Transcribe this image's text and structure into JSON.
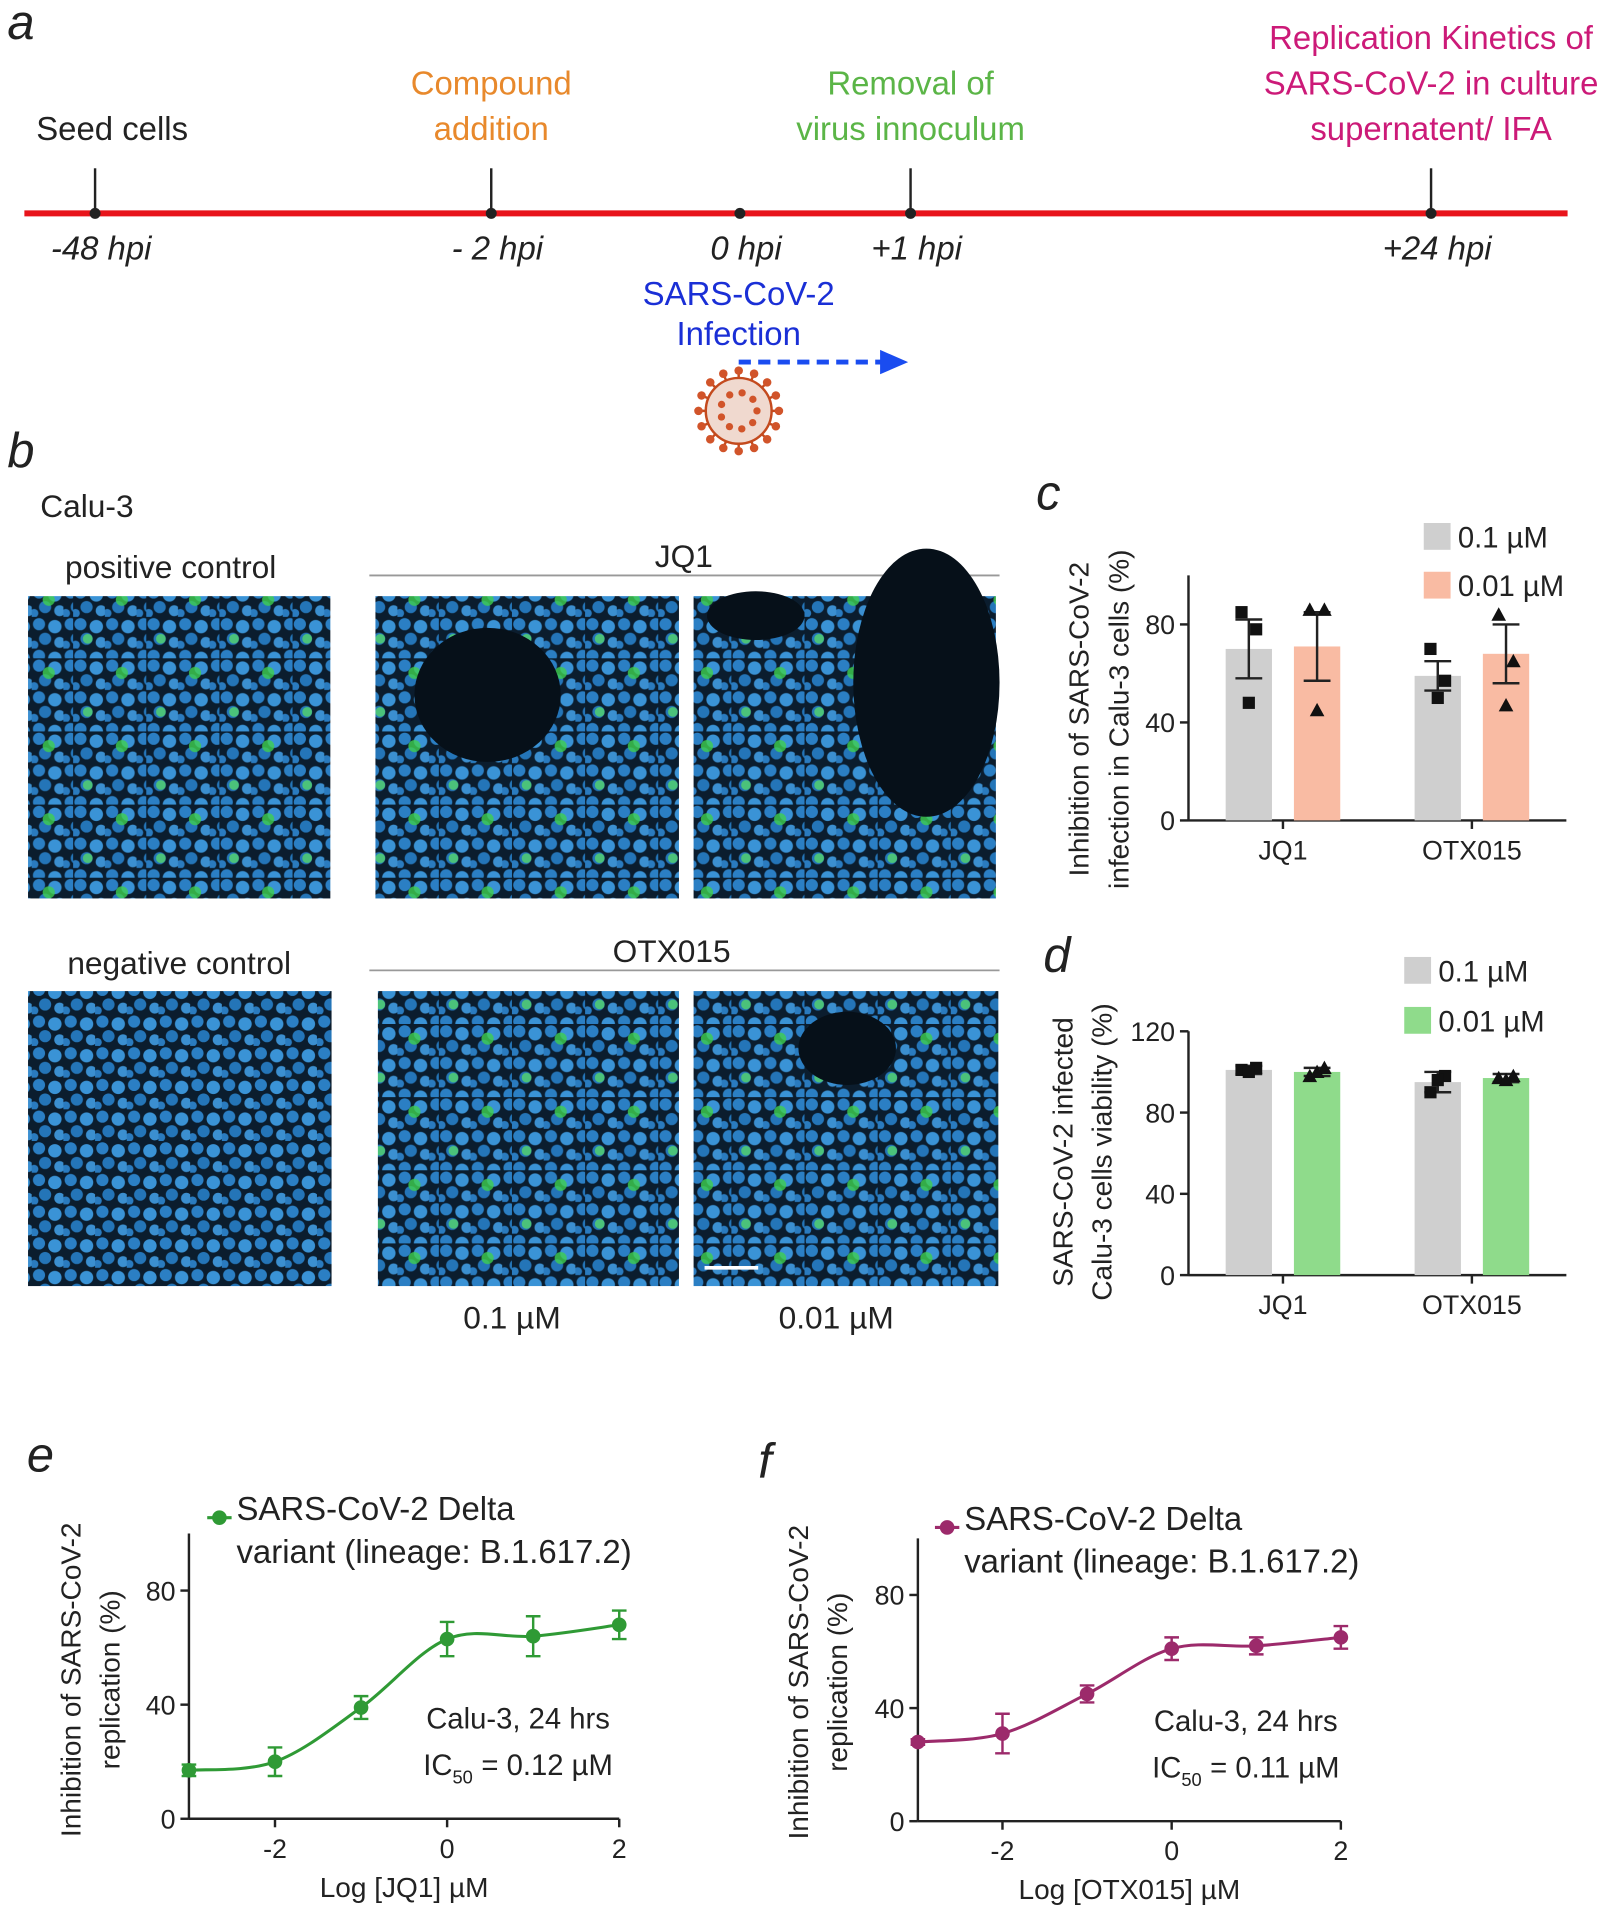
{
  "panel_labels": [
    "a",
    "b",
    "c",
    "d",
    "e",
    "f"
  ],
  "timeline": {
    "events": [
      {
        "label": [
          "Seed cells"
        ],
        "time": "-48 hpi",
        "color": "#222222"
      },
      {
        "label": [
          "Compound",
          "addition"
        ],
        "time": "- 2 hpi",
        "color": "#e8892c"
      },
      {
        "time": "0 hpi",
        "color": "#222222"
      },
      {
        "label": [
          "Removal of",
          "virus innoculum"
        ],
        "time": "+1 hpi",
        "color": "#5bb547"
      },
      {
        "label": [
          "Replication Kinetics of",
          "SARS-CoV-2 in culture",
          "supernatent/ IFA"
        ],
        "time": "+24 hpi",
        "color": "#cc1a78"
      }
    ],
    "infection": [
      "SARS-CoV-2",
      "Infection"
    ],
    "infection_color": "#1a2fd6"
  },
  "images": {
    "cell_line": "Calu-3",
    "controls": [
      "positive control",
      "negative control"
    ],
    "groups": [
      "JQ1",
      "OTX015"
    ],
    "concentrations": [
      "0.1 µM",
      "0.01 µM"
    ]
  },
  "chart_data": [
    {
      "type": "bar",
      "categories": [
        "JQ1",
        "OTX015"
      ],
      "ylabel": [
        "Inhibition of SARS-CoV-2",
        "infection in Calu-3 cells (%)"
      ],
      "ylim": [
        0,
        100
      ],
      "yticks": [
        0,
        40,
        80
      ],
      "series": [
        {
          "name": "0.1 µM",
          "color": "#cfcfcf",
          "marker": "square",
          "values": [
            70,
            59
          ],
          "errors": [
            12,
            6
          ],
          "points": [
            [
              85,
              78,
              48
            ],
            [
              70,
              57,
              50
            ]
          ]
        },
        {
          "name": "0.01 µM",
          "color": "#f9bba3",
          "marker": "triangle",
          "values": [
            71,
            68
          ],
          "errors": [
            14,
            12
          ],
          "points": [
            [
              86,
              86,
              45
            ],
            [
              84,
              65,
              47
            ]
          ]
        }
      ]
    },
    {
      "type": "bar",
      "categories": [
        "JQ1",
        "OTX015"
      ],
      "ylabel": [
        "SARS-CoV-2 infected",
        "Calu-3 cells viability (%)"
      ],
      "ylim": [
        0,
        120
      ],
      "yticks": [
        0,
        40,
        80,
        120
      ],
      "series": [
        {
          "name": "0.1 µM",
          "color": "#cfcfcf",
          "marker": "square",
          "values": [
            101,
            95
          ],
          "errors": [
            2,
            5
          ],
          "points": [
            [
              101,
              102,
              100
            ],
            [
              90,
              98,
              96
            ]
          ]
        },
        {
          "name": "0.01 µM",
          "color": "#8fdb8b",
          "marker": "triangle",
          "values": [
            100,
            97
          ],
          "errors": [
            2,
            2
          ],
          "points": [
            [
              98,
              102,
              100
            ],
            [
              97,
              98,
              96
            ]
          ]
        }
      ]
    },
    {
      "type": "line",
      "x": [
        -3,
        -2,
        -1,
        0,
        1,
        2
      ],
      "xlim": [
        -3,
        2
      ],
      "xticks": [
        -2,
        0,
        2
      ],
      "ylim": [
        0,
        100
      ],
      "yticks": [
        0,
        40,
        80
      ],
      "xlabel": "Log [JQ1] µM",
      "ylabel": [
        "Inhibition of SARS-CoV-2",
        "replication (%)"
      ],
      "series": [
        {
          "name": "SARS-CoV-2 Delta\nvariant (lineage: B.1.617.2)",
          "color": "#2f9a35",
          "values": [
            17,
            20,
            39,
            63,
            64,
            68
          ],
          "errors": [
            2,
            5,
            4,
            6,
            7,
            5
          ]
        }
      ],
      "annotations": [
        "Calu-3, 24 hrs"
      ],
      "ic50": {
        "label": "IC",
        "subscript": "50",
        "text": "= 0.12 µM"
      }
    },
    {
      "type": "line",
      "x": [
        -3,
        -2,
        -1,
        0,
        1,
        2
      ],
      "xlim": [
        -3,
        2
      ],
      "xticks": [
        -2,
        0,
        2
      ],
      "ylim": [
        0,
        100
      ],
      "yticks": [
        0,
        40,
        80
      ],
      "xlabel": "Log [OTX015] µM",
      "ylabel": [
        "Inhibition of SARS-CoV-2",
        "replication (%)"
      ],
      "series": [
        {
          "name": "SARS-CoV-2 Delta\nvariant (lineage: B.1.617.2)",
          "color": "#9c2a6b",
          "values": [
            28,
            31,
            45,
            61,
            62,
            65
          ],
          "errors": [
            1,
            7,
            3,
            4,
            3,
            4
          ]
        }
      ],
      "annotations": [
        "Calu-3, 24 hrs"
      ],
      "ic50": {
        "label": "IC",
        "subscript": "50",
        "text": "= 0.11 µM"
      }
    }
  ]
}
